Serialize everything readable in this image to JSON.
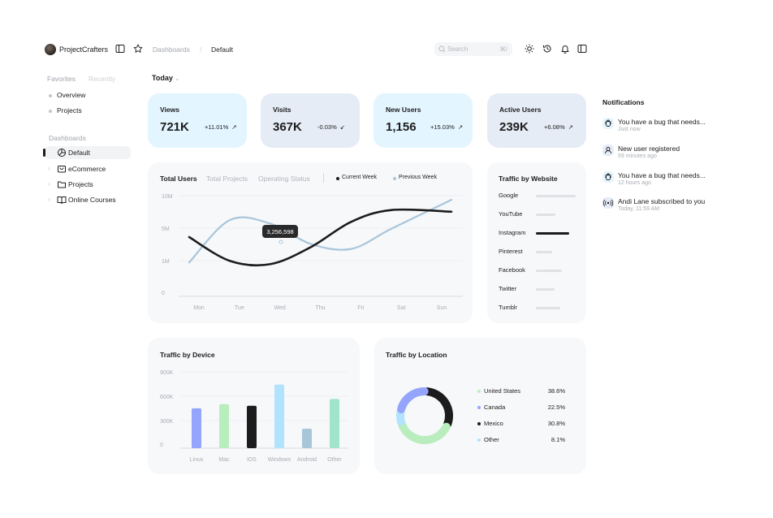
{
  "header": {
    "brand": "ProjectCrafters",
    "breadcrumb": [
      "Dashboards",
      "/",
      "Default"
    ],
    "search": {
      "placeholder": "Search",
      "shortcut": "⌘/"
    }
  },
  "sidebar": {
    "tabs": [
      "Favorites",
      "Recently"
    ],
    "favorites": [
      "Overview",
      "Projects"
    ],
    "section_title": "Dashboards",
    "items": [
      {
        "label": "Default",
        "icon": "pie-chart-icon",
        "active": true
      },
      {
        "label": "eCommerce",
        "icon": "shopping-bag-icon"
      },
      {
        "label": "Projects",
        "icon": "folder-icon"
      },
      {
        "label": "Online Courses",
        "icon": "book-icon"
      }
    ]
  },
  "filter": {
    "label": "Today"
  },
  "stats": [
    {
      "title": "Views",
      "value": "721K",
      "change": "+11.01%",
      "trend": "up",
      "bg": "#e3f5ff"
    },
    {
      "title": "Visits",
      "value": "367K",
      "change": "-0.03%",
      "trend": "down",
      "bg": "#e5ecf6"
    },
    {
      "title": "New Users",
      "value": "1,156",
      "change": "+15.03%",
      "trend": "up",
      "bg": "#e3f5ff"
    },
    {
      "title": "Active Users",
      "value": "239K",
      "change": "+6.08%",
      "trend": "up",
      "bg": "#e5ecf6"
    }
  ],
  "users_chart": {
    "tabs": [
      "Total Users",
      "Total Projects",
      "Operating Status"
    ],
    "legend": [
      "Current Week",
      "Previous Week"
    ],
    "tooltip": "3,256,598"
  },
  "chart_data": [
    {
      "type": "line",
      "title": "Total Users",
      "x": [
        "Mon",
        "Tue",
        "Wed",
        "Thu",
        "Fri",
        "Sat",
        "Sun"
      ],
      "y_ticks": [
        "10M",
        "5M",
        "1M",
        "0"
      ],
      "series": [
        {
          "name": "Current Week",
          "color": "#1c1c1c",
          "values": [
            1.75,
            1.05,
            0.95,
            1.45,
            2.2,
            2.55,
            2.5
          ]
        },
        {
          "name": "Previous Week",
          "color": "#a8c5da",
          "values": [
            1.0,
            2.25,
            2.15,
            1.55,
            1.4,
            2.0,
            2.85
          ]
        }
      ],
      "tooltip": {
        "x": "Wed",
        "label": "3,256,598"
      }
    },
    {
      "type": "bar",
      "title": "Traffic by Website",
      "categories": [
        "Google",
        "YouTube",
        "Instagram",
        "Pinterest",
        "Facebook",
        "Twitter",
        "Tumblr"
      ],
      "values": [
        0.9,
        0.45,
        0.75,
        0.37,
        0.6,
        0.42,
        0.55
      ],
      "highlight": "Instagram"
    },
    {
      "type": "bar",
      "title": "Traffic by Device",
      "categories": [
        "Linux",
        "Mac",
        "iOS",
        "Windows",
        "Android",
        "Other"
      ],
      "y_ticks": [
        "900K",
        "600K",
        "300K",
        "0"
      ],
      "ylim": [
        0,
        900
      ],
      "values": [
        470,
        520,
        500,
        750,
        230,
        580
      ],
      "colors": [
        "#95a4fc",
        "#baedbd",
        "#1c1c1c",
        "#b1e3ff",
        "#a8c5da",
        "#a1e3cb"
      ]
    },
    {
      "type": "pie",
      "title": "Traffic by Location",
      "labels": [
        "United States",
        "Canada",
        "Mexico",
        "Other"
      ],
      "values": [
        38.6,
        22.5,
        30.8,
        8.1
      ],
      "display": [
        "38.6%",
        "22.5%",
        "30.8%",
        "8.1%"
      ],
      "colors": [
        "#baedbd",
        "#95a4fc",
        "#1c1c1c",
        "#b1e3ff"
      ]
    }
  ],
  "notifications": {
    "title": "Notifications",
    "items": [
      {
        "text": "You have a bug that needs...",
        "time": "Just now",
        "icon": "bug-icon"
      },
      {
        "text": "New user registered",
        "time": "59 minutes ago",
        "icon": "user-icon"
      },
      {
        "text": "You have a bug that needs...",
        "time": "12 hours ago",
        "icon": "bug-icon"
      },
      {
        "text": "Andi Lane subscribed to you",
        "time": "Today, 11:59 AM",
        "icon": "broadcast-icon"
      }
    ]
  }
}
